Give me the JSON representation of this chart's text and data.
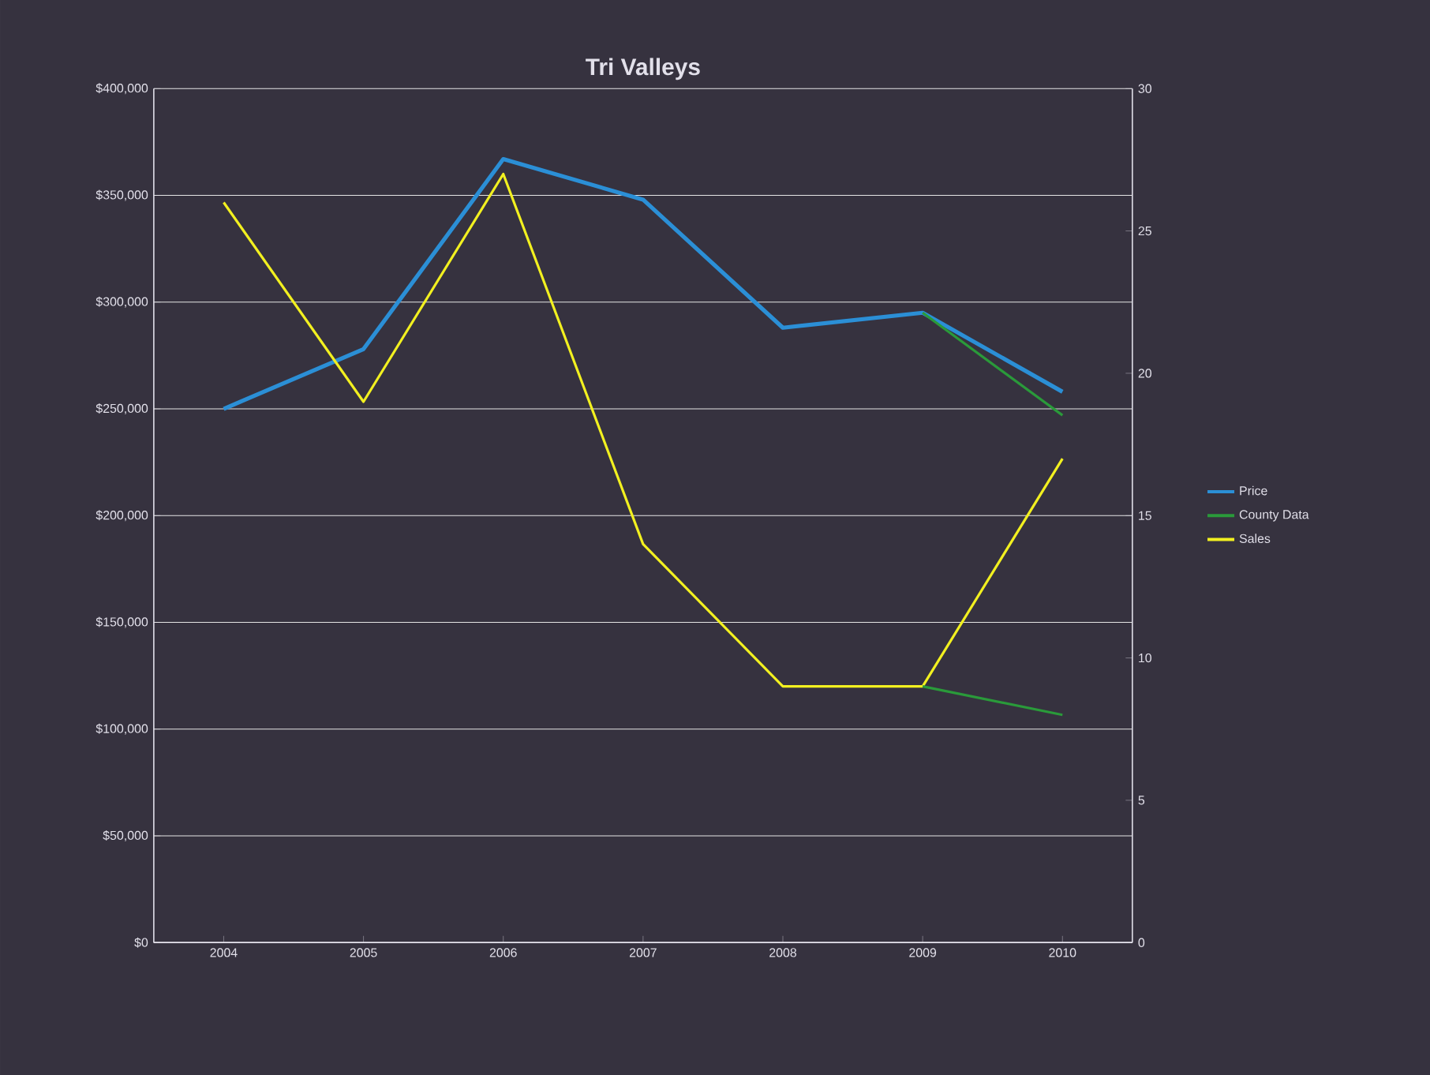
{
  "chart_data": {
    "type": "line",
    "title": "Tri Valleys",
    "categories": [
      "2004",
      "2005",
      "2006",
      "2007",
      "2008",
      "2009",
      "2010"
    ],
    "series": [
      {
        "name": "Price",
        "color": "#2b8fd6",
        "values": [
          250000,
          278000,
          367000,
          348000,
          288000,
          295000,
          258000
        ]
      },
      {
        "name": "County Data",
        "color": "#2a9a3a",
        "values": [
          null,
          null,
          null,
          null,
          null,
          295000,
          247000
        ]
      },
      {
        "name": "Sales",
        "color": "#f2f020",
        "axis": "y2",
        "values": [
          26,
          19,
          27,
          14,
          9,
          9,
          17
        ]
      },
      {
        "color": "#2a9a3a",
        "axis": "y2",
        "values": [
          null,
          null,
          null,
          null,
          null,
          9,
          8
        ]
      }
    ],
    "ylim": [
      0,
      400000
    ],
    "yticks": [
      {
        "value": 0,
        "label": "$0"
      },
      {
        "value": 50000,
        "label": "$50,000"
      },
      {
        "value": 100000,
        "label": "$100,000"
      },
      {
        "value": 150000,
        "label": "$150,000"
      },
      {
        "value": 200000,
        "label": "$200,000"
      },
      {
        "value": 250000,
        "label": "$250,000"
      },
      {
        "value": 300000,
        "label": "$300,000"
      },
      {
        "value": 350000,
        "label": "$350,000"
      },
      {
        "value": 400000,
        "label": "$400,000"
      }
    ],
    "y2lim": [
      0,
      30
    ],
    "y2ticks": [
      0,
      5,
      10,
      15,
      20,
      25,
      30
    ],
    "grid": "y",
    "legend": "right"
  }
}
